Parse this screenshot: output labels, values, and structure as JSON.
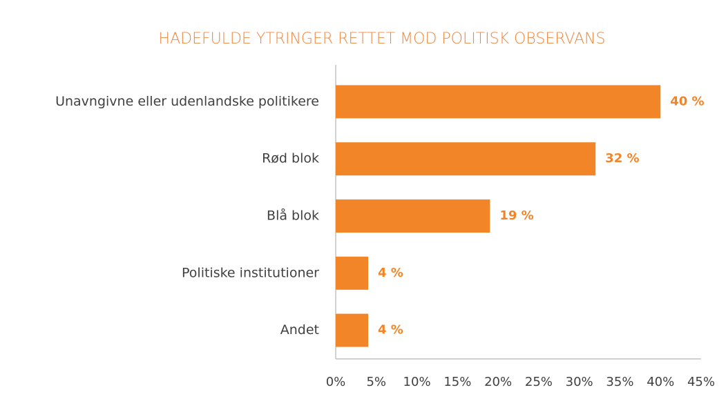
{
  "chart_data": {
    "type": "bar",
    "orientation": "horizontal",
    "title": "HADEFULDE YTRINGER RETTET MOD POLITISK OBSERVANS",
    "categories": [
      "Unavngivne eller udenlandske politikere",
      "Rød blok",
      "Blå blok",
      "Politiske institutioner",
      "Andet"
    ],
    "values": [
      40,
      32,
      19,
      4,
      4
    ],
    "value_labels": [
      "40 %",
      "32 %",
      "19 %",
      "4 %",
      "4 %"
    ],
    "color": "#f28527",
    "xlim": [
      0,
      45
    ],
    "xticks": [
      {
        "value": 0,
        "label": "0%"
      },
      {
        "value": 5,
        "label": "5%"
      },
      {
        "value": 10,
        "label": "10%"
      },
      {
        "value": 15,
        "label": "15%"
      },
      {
        "value": 20,
        "label": "20%"
      },
      {
        "value": 25,
        "label": "25%"
      },
      {
        "value": 30,
        "label": "30%"
      },
      {
        "value": 35,
        "label": "35%"
      },
      {
        "value": 40,
        "label": "40%"
      },
      {
        "value": 45,
        "label": "45%"
      }
    ],
    "grid": false
  }
}
